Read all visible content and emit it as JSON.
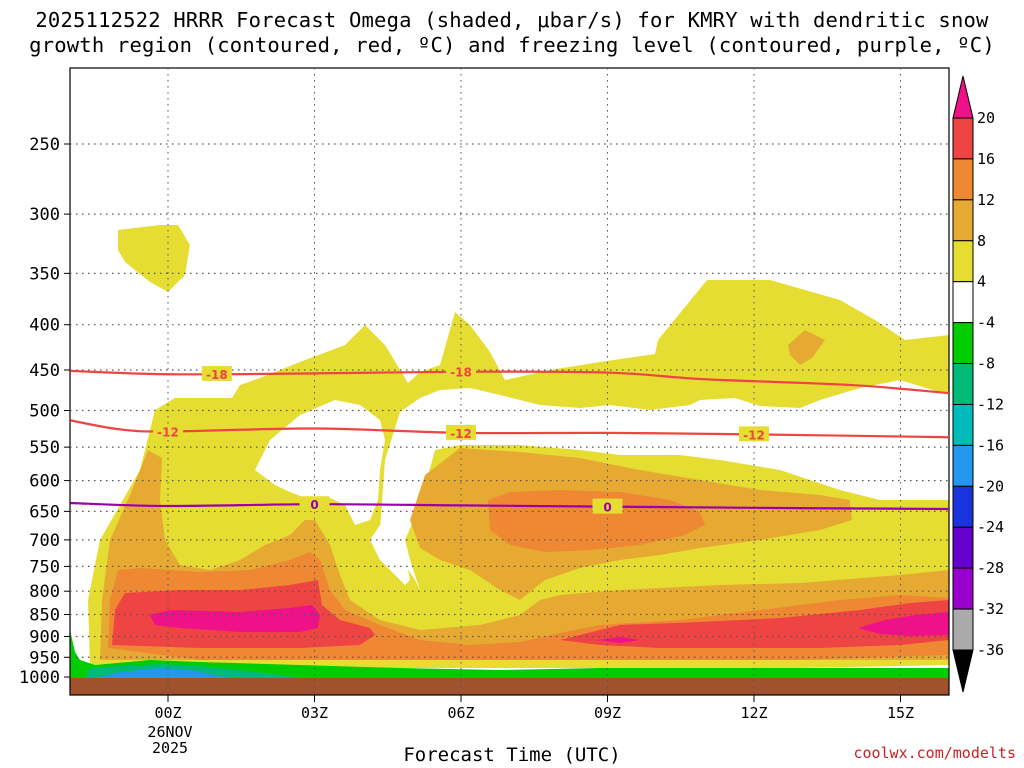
{
  "title_line1": "2025112522 HRRR Forecast Omega (shaded, μbar/s) for KMRY with dendritic snow",
  "title_line2": "growth region (contoured, red, ºC) and freezing level (contoured, purple, ºC)",
  "x_axis_label": "Forecast Time (UTC)",
  "date_label_day": "26NOV",
  "date_label_year": "2025",
  "credit": "coolwx.com/modelts",
  "chart_data": {
    "type": "heatmap",
    "xlabel": "Forecast Time (UTC)",
    "ylabel": "",
    "x_ticks": [
      "00Z",
      "03Z",
      "06Z",
      "09Z",
      "12Z",
      "15Z"
    ],
    "x_tick_hours": [
      0,
      3,
      6,
      9,
      12,
      15
    ],
    "xlim_hours": [
      -2,
      16
    ],
    "y_ticks": [
      250,
      300,
      350,
      400,
      450,
      500,
      550,
      600,
      650,
      700,
      750,
      800,
      850,
      900,
      950,
      1000
    ],
    "ylim_hpa": [
      200,
      1000
    ],
    "grid": true,
    "colorbar": {
      "levels": [
        -36,
        -32,
        -28,
        -24,
        -20,
        -16,
        -12,
        -8,
        -4,
        4,
        8,
        12,
        16,
        20
      ],
      "colors": [
        "#000000",
        "#aaaaaa",
        "#9900cc",
        "#6600cc",
        "#1a33dd",
        "#2299ee",
        "#00bbbb",
        "#00bb77",
        "#00cc00",
        "#ffffff",
        "#e6dd33",
        "#e6aa33",
        "#ee8833",
        "#ee4444",
        "#ee1188"
      ]
    },
    "contours": [
      {
        "label": "-18",
        "color": "#ee4444",
        "label_hours": [
          1,
          6
        ],
        "points": [
          [
            -2,
            451
          ],
          [
            0,
            455
          ],
          [
            3,
            454
          ],
          [
            6,
            452
          ],
          [
            9,
            453
          ],
          [
            11,
            461
          ],
          [
            14,
            468
          ],
          [
            16,
            478
          ]
        ]
      },
      {
        "label": "-12",
        "color": "#ee4444",
        "label_hours": [
          0,
          6,
          12
        ],
        "points": [
          [
            -2,
            513
          ],
          [
            -1,
            525
          ],
          [
            0,
            528
          ],
          [
            3,
            524
          ],
          [
            6,
            530
          ],
          [
            9,
            530
          ],
          [
            12,
            532
          ],
          [
            16,
            536
          ]
        ]
      },
      {
        "label": "0",
        "color": "#9900aa",
        "label_hours": [
          3,
          9
        ],
        "points": [
          [
            -2,
            636
          ],
          [
            0,
            641
          ],
          [
            3,
            638
          ],
          [
            6,
            640
          ],
          [
            9,
            642
          ],
          [
            12,
            644
          ],
          [
            16,
            646
          ]
        ]
      }
    ],
    "surface_pressure_hpa": 1012
  }
}
